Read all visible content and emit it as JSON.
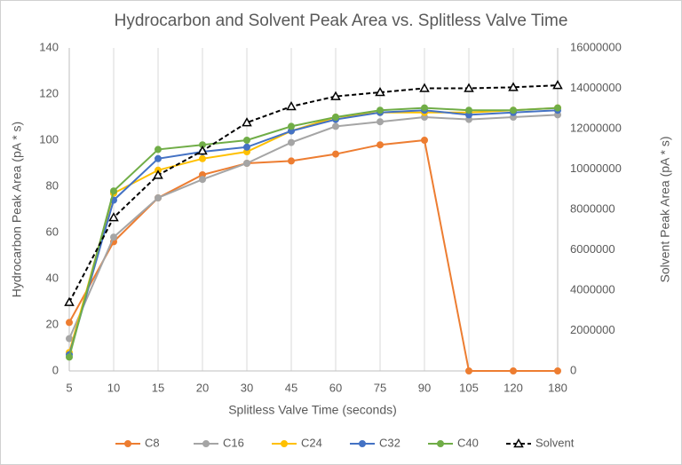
{
  "chart_data": {
    "type": "line",
    "title": "Hydrocarbon and Solvent Peak Area vs. Splitless Valve Time",
    "x_label": "Splitless Valve Time (seconds)",
    "y_label": "Hydrocarbon Peak Area (pA * s)",
    "y2_label": "Solvent Peak Area (pA * s)",
    "categories": [
      "5",
      "10",
      "15",
      "20",
      "30",
      "45",
      "60",
      "75",
      "90",
      "105",
      "120",
      "180"
    ],
    "ylim": [
      0,
      140
    ],
    "yticks": [
      0,
      20,
      40,
      60,
      80,
      100,
      120,
      140
    ],
    "y2lim": [
      0,
      16000000
    ],
    "y2ticks": [
      0,
      2000000,
      4000000,
      6000000,
      8000000,
      10000000,
      12000000,
      14000000,
      16000000
    ],
    "xgrid": true,
    "legend": "bottom",
    "series": [
      {
        "name": "C8",
        "color": "#ed7d31",
        "marker": "circle",
        "values": [
          21,
          56,
          75,
          85,
          90,
          91,
          94,
          98,
          100,
          0,
          0,
          0
        ]
      },
      {
        "name": "C16",
        "color": "#a5a5a5",
        "marker": "circle",
        "values": [
          14,
          58,
          75,
          83,
          90,
          99,
          106,
          108,
          110,
          109,
          110,
          111
        ]
      },
      {
        "name": "C24",
        "color": "#ffc000",
        "marker": "circle",
        "values": [
          8,
          77,
          87,
          92,
          95,
          104,
          110,
          112,
          112,
          112,
          113,
          114
        ]
      },
      {
        "name": "C32",
        "color": "#4472c4",
        "marker": "circle",
        "values": [
          7,
          74,
          92,
          95,
          97,
          104,
          109,
          112,
          113,
          111,
          112,
          113
        ]
      },
      {
        "name": "C40",
        "color": "#70ad47",
        "marker": "circle",
        "values": [
          6,
          78,
          96,
          98,
          100,
          106,
          110,
          113,
          114,
          113,
          113,
          114
        ]
      },
      {
        "name": "Solvent",
        "color": "#000000",
        "marker": "triangle",
        "dash": true,
        "axis": "y2",
        "values": [
          3400000,
          7600000,
          9700000,
          10900000,
          12300000,
          13100000,
          13600000,
          13800000,
          14000000,
          14000000,
          14050000,
          14150000
        ]
      }
    ]
  }
}
